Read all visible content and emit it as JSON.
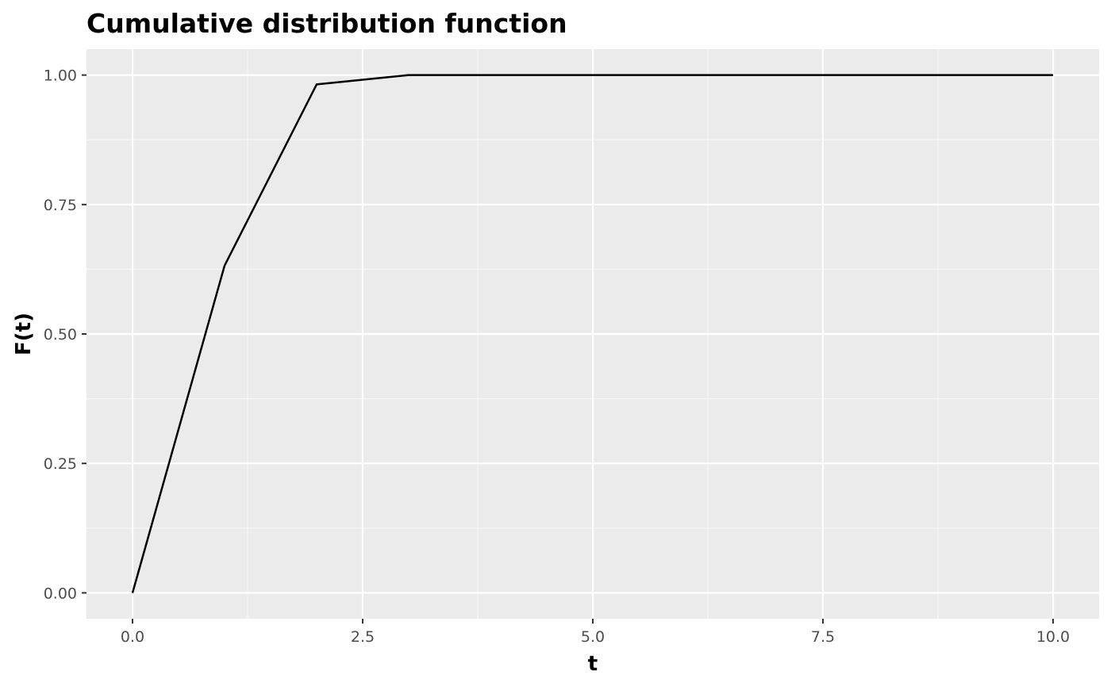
{
  "chart_data": {
    "type": "line",
    "title": "Cumulative distribution function",
    "xlabel": "t",
    "ylabel": "F(t)",
    "x": [
      0,
      1,
      2,
      3,
      4,
      5,
      6,
      7,
      8,
      9,
      10
    ],
    "series": [
      {
        "values": [
          0.0,
          0.632,
          0.982,
          1.0,
          1.0,
          1.0,
          1.0,
          1.0,
          1.0,
          1.0,
          1.0
        ]
      }
    ],
    "xlim": [
      -0.5,
      10.5
    ],
    "ylim": [
      -0.05,
      1.05
    ],
    "xticks": [
      0,
      2.5,
      5,
      7.5,
      10
    ],
    "xtick_labels": [
      "0.0",
      "2.5",
      "5.0",
      "7.5",
      "10.0"
    ],
    "yticks": [
      0,
      0.25,
      0.5,
      0.75,
      1
    ],
    "ytick_labels": [
      "0.00",
      "0.25",
      "0.50",
      "0.75",
      "1.00"
    ],
    "grid": true,
    "colors": {
      "panel_background": "#ebebeb",
      "grid_major": "#ffffff",
      "grid_minor": "#f5f5f5",
      "line": "#000000",
      "tick_text": "#4d4d4d",
      "tick_mark": "#333333"
    }
  }
}
